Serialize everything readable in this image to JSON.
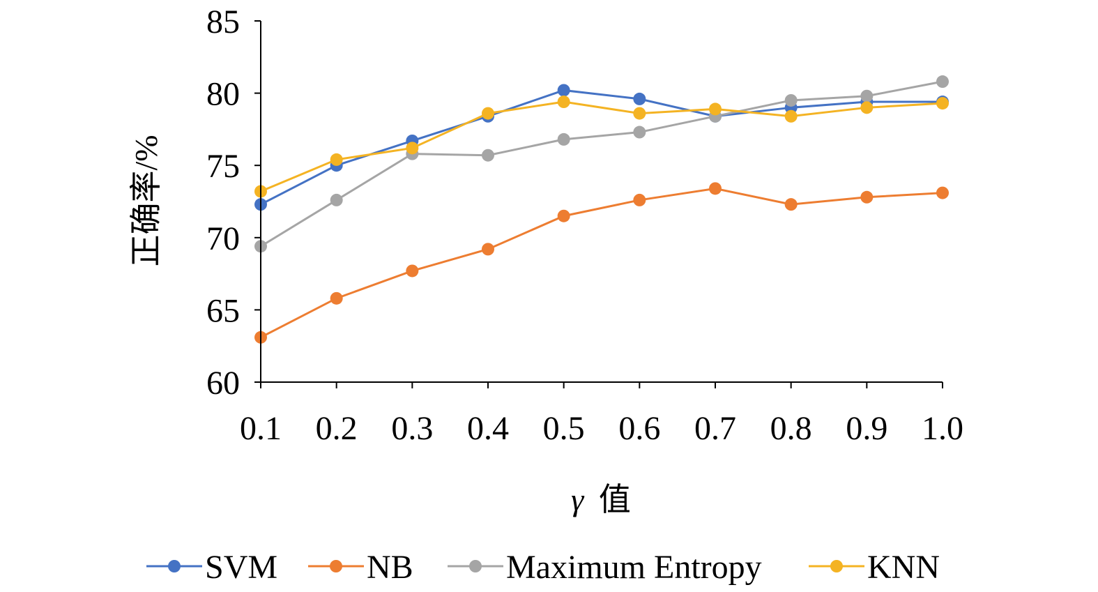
{
  "chart_data": {
    "type": "line",
    "title": "",
    "xlabel_symbol": "γ",
    "xlabel_text": "值",
    "ylabel": "正确率/%",
    "ylim": [
      60,
      85
    ],
    "yticks": [
      60,
      65,
      70,
      75,
      80,
      85
    ],
    "categories": [
      "0.1",
      "0.2",
      "0.3",
      "0.4",
      "0.5",
      "0.6",
      "0.7",
      "0.8",
      "0.9",
      "1.0"
    ],
    "series": [
      {
        "name": "SVM",
        "color": "#4472C4",
        "values": [
          72.3,
          75.0,
          76.7,
          78.4,
          80.2,
          79.6,
          78.4,
          79.0,
          79.4,
          79.4
        ]
      },
      {
        "name": "NB",
        "color": "#ED7D31",
        "values": [
          63.1,
          65.8,
          67.7,
          69.2,
          71.5,
          72.6,
          73.4,
          72.3,
          72.8,
          73.1
        ]
      },
      {
        "name": "Maximum Entropy",
        "color": "#A5A5A5",
        "values": [
          69.4,
          72.6,
          75.8,
          75.7,
          76.8,
          77.3,
          78.4,
          79.5,
          79.8,
          80.8
        ]
      },
      {
        "name": "KNN",
        "color": "#F4B323",
        "values": [
          73.2,
          75.4,
          76.2,
          78.6,
          79.4,
          78.6,
          78.9,
          78.4,
          79.0,
          79.3
        ]
      }
    ],
    "legend_position": "bottom",
    "grid": false
  }
}
